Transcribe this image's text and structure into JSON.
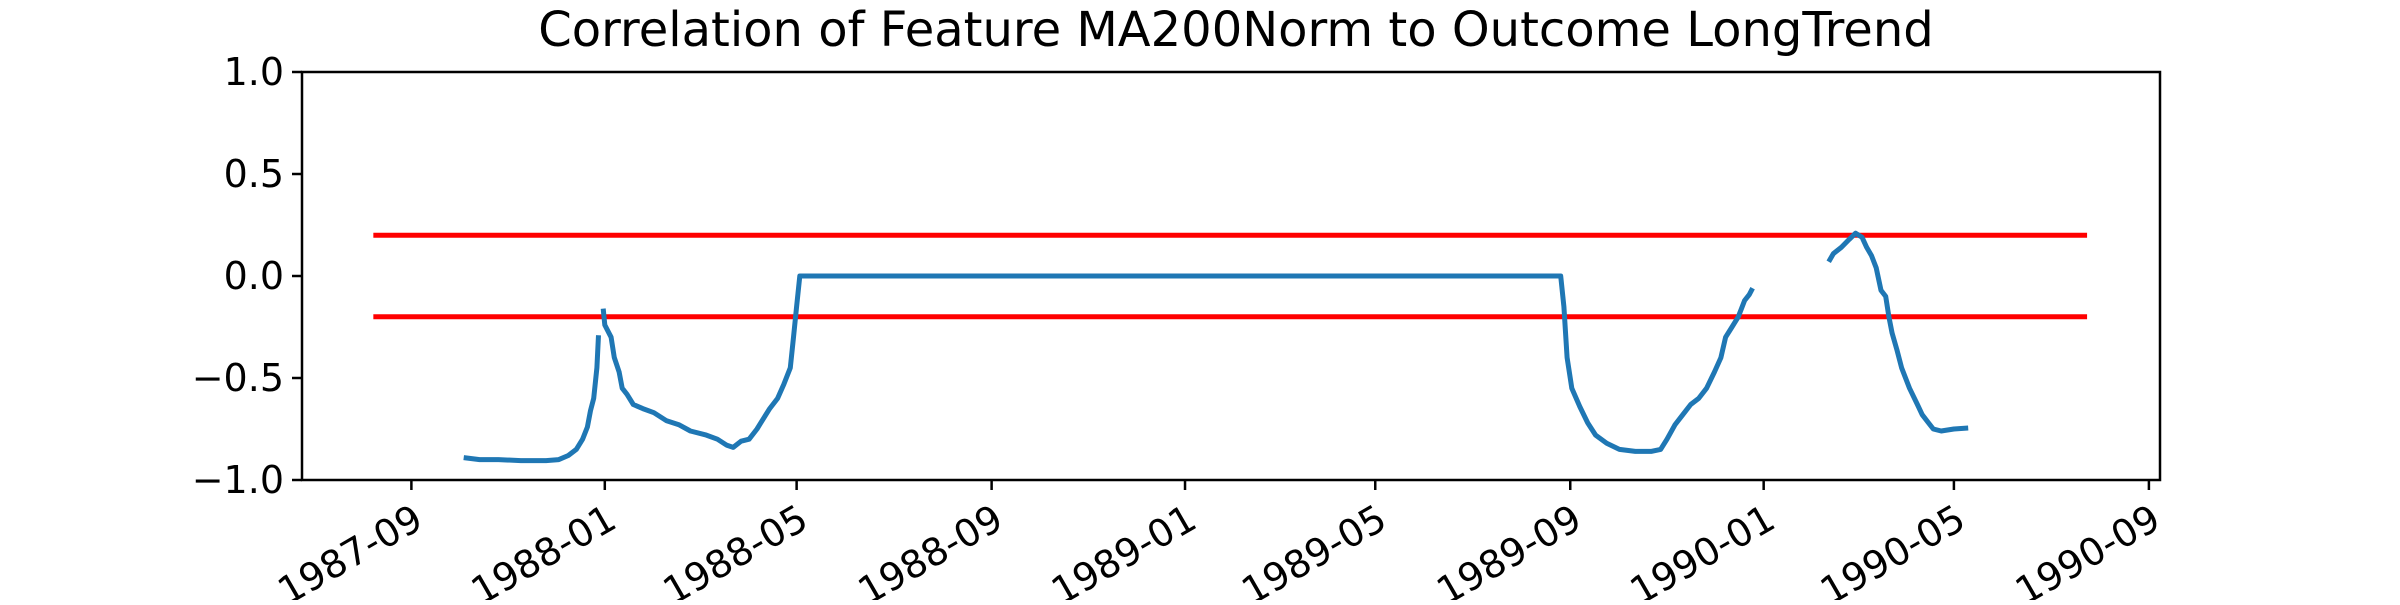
{
  "chart_data": {
    "type": "line",
    "title": "Correlation of Feature MA200Norm to Outcome LongTrend",
    "xlabel": "",
    "ylabel": "",
    "x_type": "date",
    "xlim": [
      "1987-06-24",
      "1990-09-08"
    ],
    "ylim": [
      -1.0,
      1.0
    ],
    "grid": false,
    "x_ticks": [
      "1987-09",
      "1988-01",
      "1988-05",
      "1988-09",
      "1989-01",
      "1989-05",
      "1989-09",
      "1990-01",
      "1990-05",
      "1990-09"
    ],
    "y_ticks": [
      "−1.0",
      "−0.5",
      "0.0",
      "0.5",
      "1.0"
    ],
    "y_tick_values": [
      -1.0,
      -0.5,
      0.0,
      0.5,
      1.0
    ],
    "series": [
      {
        "color": "#1f77b4",
        "segments": [
          [
            [
              "1987-10-04",
              -0.89
            ],
            [
              "1987-10-14",
              -0.9
            ],
            [
              "1987-10-26",
              -0.9
            ],
            [
              "1987-11-09",
              -0.905
            ],
            [
              "1987-11-25",
              -0.905
            ],
            [
              "1987-12-03",
              -0.9
            ],
            [
              "1987-12-09",
              -0.88
            ],
            [
              "1987-12-14",
              -0.85
            ],
            [
              "1987-12-18",
              -0.8
            ],
            [
              "1987-12-21",
              -0.74
            ],
            [
              "1987-12-23",
              -0.66
            ],
            [
              "1987-12-25",
              -0.6
            ],
            [
              "1987-12-27",
              -0.45
            ],
            [
              "1987-12-28",
              -0.29
            ]
          ],
          [
            [
              "1987-12-31",
              -0.16
            ],
            [
              "1988-01-01",
              -0.24
            ],
            [
              "1988-01-05",
              -0.3
            ],
            [
              "1988-01-07",
              -0.4
            ],
            [
              "1988-01-10",
              -0.47
            ],
            [
              "1988-01-12",
              -0.55
            ],
            [
              "1988-01-15",
              -0.58
            ],
            [
              "1988-01-19",
              -0.63
            ],
            [
              "1988-01-25",
              -0.65
            ],
            [
              "1988-02-01",
              -0.67
            ],
            [
              "1988-02-09",
              -0.71
            ],
            [
              "1988-02-17",
              -0.73
            ],
            [
              "1988-02-24",
              -0.76
            ],
            [
              "1988-03-05",
              -0.78
            ],
            [
              "1988-03-12",
              -0.8
            ],
            [
              "1988-03-18",
              -0.83
            ],
            [
              "1988-03-22",
              -0.84
            ],
            [
              "1988-03-27",
              -0.81
            ],
            [
              "1988-04-01",
              -0.8
            ],
            [
              "1988-04-06",
              -0.75
            ],
            [
              "1988-04-10",
              -0.7
            ],
            [
              "1988-04-14",
              -0.65
            ],
            [
              "1988-04-19",
              -0.6
            ],
            [
              "1988-04-23",
              -0.53
            ],
            [
              "1988-04-27",
              -0.45
            ],
            [
              "1988-04-29",
              -0.3
            ],
            [
              "1988-05-01",
              -0.15
            ],
            [
              "1988-05-03",
              0.0
            ],
            [
              "1988-06-15",
              0.0
            ],
            [
              "1988-08-01",
              0.0
            ],
            [
              "1988-09-15",
              0.0
            ],
            [
              "1988-11-01",
              0.0
            ],
            [
              "1988-12-15",
              0.0
            ],
            [
              "1989-02-01",
              0.0
            ],
            [
              "1989-03-15",
              0.0
            ],
            [
              "1989-05-01",
              0.0
            ],
            [
              "1989-06-15",
              0.0
            ],
            [
              "1989-08-01",
              0.0
            ],
            [
              "1989-08-26",
              0.0
            ],
            [
              "1989-08-28",
              -0.15
            ],
            [
              "1989-08-30",
              -0.4
            ],
            [
              "1989-09-02",
              -0.55
            ],
            [
              "1989-09-07",
              -0.64
            ],
            [
              "1989-09-12",
              -0.72
            ],
            [
              "1989-09-17",
              -0.78
            ],
            [
              "1989-09-24",
              -0.82
            ],
            [
              "1989-10-02",
              -0.85
            ],
            [
              "1989-10-12",
              -0.86
            ],
            [
              "1989-10-22",
              -0.86
            ],
            [
              "1989-10-28",
              -0.85
            ],
            [
              "1989-11-01",
              -0.8
            ],
            [
              "1989-11-06",
              -0.73
            ],
            [
              "1989-11-11",
              -0.68
            ],
            [
              "1989-11-16",
              -0.63
            ],
            [
              "1989-11-21",
              -0.6
            ],
            [
              "1989-11-26",
              -0.55
            ],
            [
              "1989-12-01",
              -0.47
            ],
            [
              "1989-12-05",
              -0.4
            ],
            [
              "1989-12-08",
              -0.3
            ],
            [
              "1989-12-12",
              -0.25
            ],
            [
              "1989-12-16",
              -0.2
            ],
            [
              "1989-12-20",
              -0.12
            ],
            [
              "1989-12-23",
              -0.09
            ],
            [
              "1989-12-25",
              -0.06
            ]
          ],
          [
            [
              "1990-02-11",
              0.07
            ],
            [
              "1990-02-14",
              0.11
            ],
            [
              "1990-02-19",
              0.14
            ],
            [
              "1990-02-24",
              0.18
            ],
            [
              "1990-02-28",
              0.21
            ],
            [
              "1990-03-04",
              0.19
            ],
            [
              "1990-03-07",
              0.14
            ],
            [
              "1990-03-10",
              0.1
            ],
            [
              "1990-03-13",
              0.04
            ],
            [
              "1990-03-16",
              -0.07
            ],
            [
              "1990-03-19",
              -0.1
            ],
            [
              "1990-03-21",
              -0.2
            ],
            [
              "1990-03-23",
              -0.28
            ],
            [
              "1990-03-26",
              -0.36
            ],
            [
              "1990-03-29",
              -0.45
            ],
            [
              "1990-04-03",
              -0.55
            ],
            [
              "1990-04-08",
              -0.63
            ],
            [
              "1990-04-11",
              -0.68
            ],
            [
              "1990-04-15",
              -0.72
            ],
            [
              "1990-04-18",
              -0.75
            ],
            [
              "1990-04-23",
              -0.76
            ],
            [
              "1990-05-01",
              -0.75
            ],
            [
              "1990-05-10",
              -0.745
            ]
          ]
        ]
      }
    ],
    "reference_lines": [
      {
        "y": 0.2,
        "x": [
          "1987-08-08",
          "1990-07-24"
        ],
        "color": "#ff0000"
      },
      {
        "y": -0.2,
        "x": [
          "1987-08-08",
          "1990-07-24"
        ],
        "color": "#ff0000"
      }
    ]
  }
}
